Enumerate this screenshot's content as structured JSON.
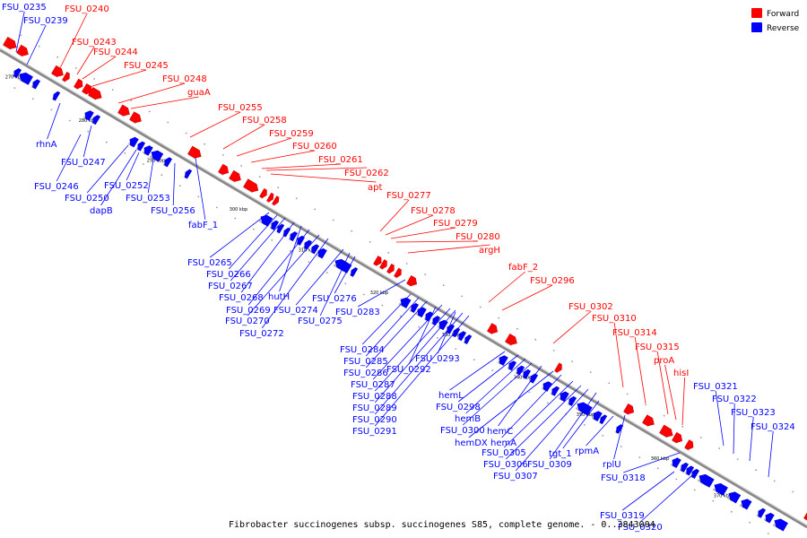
{
  "caption": "Fibrobacter succinogenes subsp. succinogenes S85, complete genome. - 0..3843004",
  "legend": {
    "forward_label": "Forward",
    "reverse_label": "Reverse",
    "forward_color": "#ff0000",
    "reverse_color": "#0000ff"
  },
  "colors": {
    "backbone": "#888888",
    "forward_stroke": "#cc0000",
    "reverse_stroke": "#0000cc"
  },
  "ticks": [
    "270 kbp",
    "280 kbp",
    "290 kbp",
    "300 kbp",
    "310 kbp",
    "320 kbp",
    "330 kbp",
    "340 kbp",
    "350 kbp",
    "360 kbp",
    "370 kbp"
  ],
  "forward_genes": [
    "FSU_0240",
    "FSU_0243",
    "FSU_0244",
    "FSU_0245",
    "FSU_0248",
    "guaA",
    "FSU_0255",
    "FSU_0258",
    "FSU_0259",
    "FSU_0260",
    "FSU_0261",
    "FSU_0262",
    "apt",
    "FSU_0277",
    "FSU_0278",
    "FSU_0279",
    "FSU_0280",
    "argH",
    "fabF_2",
    "FSU_0296",
    "FSU_0302",
    "FSU_0310",
    "FSU_0314",
    "FSU_0315",
    "proA",
    "hisI"
  ],
  "reverse_genes": [
    "FSU_0235",
    "FSU_0239",
    "rhnA",
    "FSU_0247",
    "FSU_0246",
    "FSU_0250",
    "dapB",
    "FSU_0252",
    "FSU_0253",
    "FSU_0256",
    "fabF_1",
    "FSU_0265",
    "FSU_0266",
    "FSU_0267",
    "FSU_0268",
    "hutH",
    "FSU_0269",
    "FSU_0270",
    "FSU_0272",
    "FSU_0274",
    "FSU_0275",
    "FSU_0276",
    "FSU_0283",
    "FSU_0284",
    "FSU_0285",
    "FSU_0286",
    "FSU_0292",
    "FSU_0293",
    "FSU_0287",
    "FSU_0288",
    "FSU_0289",
    "FSU_0290",
    "FSU_0291",
    "hemL",
    "FSU_0298",
    "hemB",
    "FSU_0300",
    "hemC",
    "hemDX",
    "hemA",
    "FSU_0305",
    "FSU_0306",
    "FSU_0309",
    "FSU_0307",
    "tgt_1",
    "rpmA",
    "rplU",
    "FSU_0318",
    "FSU_0321",
    "FSU_0322",
    "FSU_0323",
    "FSU_0324",
    "FSU_0319",
    "FSU_0320"
  ]
}
